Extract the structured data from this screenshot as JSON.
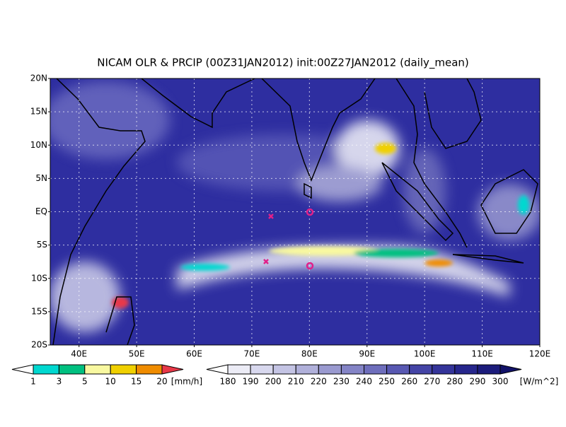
{
  "title": "NICAM OLR & PRCIP (00Z31JAN2012) init:00Z27JAN2012 (daily_mean)",
  "map": {
    "lat_labels": [
      "20N",
      "15N",
      "10N",
      "5N",
      "EQ",
      "5S",
      "10S",
      "15S",
      "20S"
    ],
    "lon_labels": [
      "40E",
      "50E",
      "60E",
      "70E",
      "80E",
      "90E",
      "100E",
      "110E",
      "120E"
    ]
  },
  "precip_legend": {
    "labels": [
      "1",
      "3",
      "5",
      "10",
      "15",
      "20"
    ],
    "unit": "[mm/h]",
    "colors": [
      "#00d8d0",
      "#00c080",
      "#f8f8a0",
      "#f0d000",
      "#f08c00",
      "#e83848"
    ],
    "under_color": "#ffffff"
  },
  "olr_legend": {
    "labels": [
      "180",
      "190",
      "200",
      "210",
      "220",
      "230",
      "240",
      "250",
      "260",
      "270",
      "280",
      "290",
      "300"
    ],
    "unit": "[W/m^2]",
    "colors": [
      "#ececf6",
      "#d8d8ee",
      "#c4c4e4",
      "#b0b0da",
      "#9a9ad0",
      "#8484c6",
      "#6e6ebc",
      "#5858b2",
      "#4444a6",
      "#34349a",
      "#26268c",
      "#1c1c7c",
      "#121268"
    ],
    "under_color": "#ffffff"
  }
}
